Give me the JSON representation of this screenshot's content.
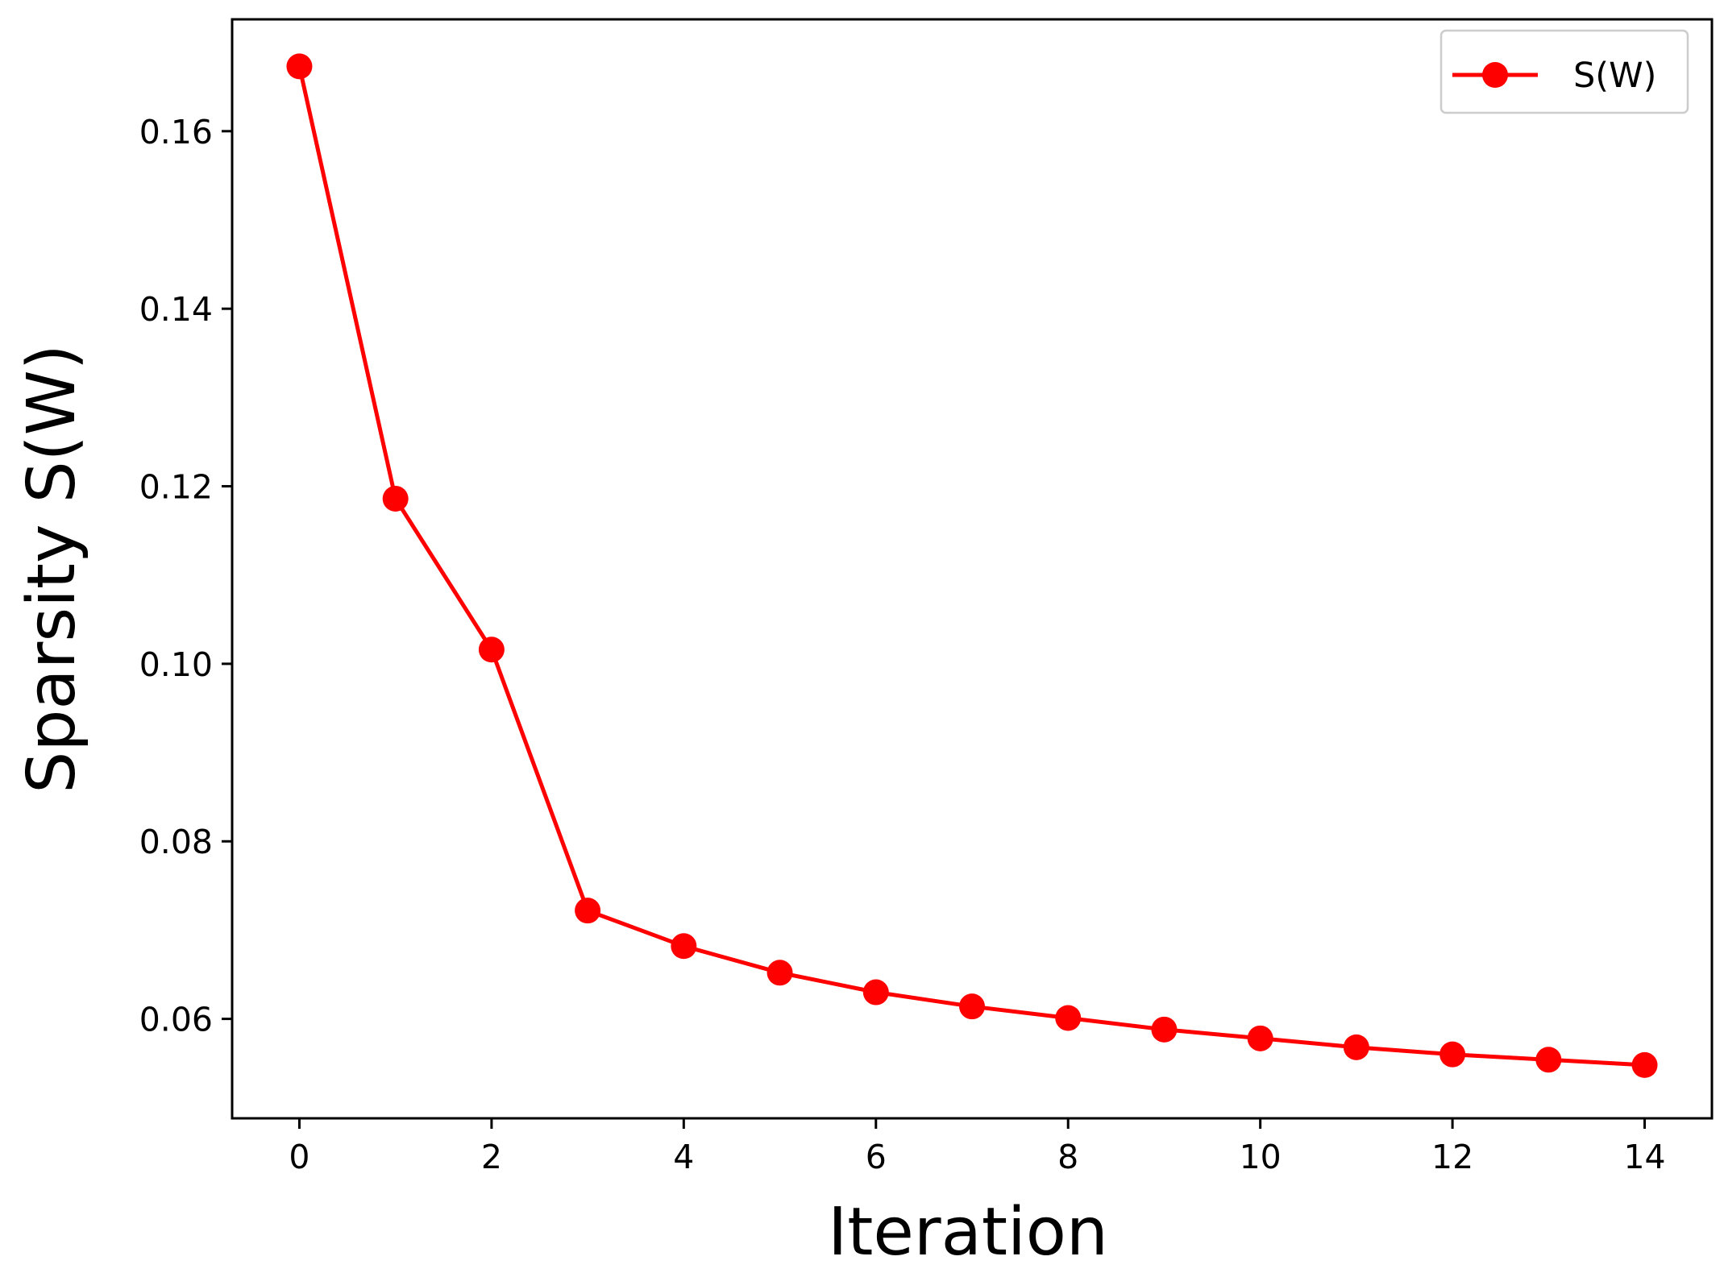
{
  "chart_data": {
    "type": "line",
    "title": "",
    "xlabel": "Iteration",
    "ylabel": "Sparsity S(W)",
    "xlim": [
      -0.7,
      14.7
    ],
    "ylim": [
      0.0488,
      0.1726
    ],
    "xticks": [
      0,
      2,
      4,
      6,
      8,
      10,
      12,
      14
    ],
    "xtick_labels": [
      "0",
      "2",
      "4",
      "6",
      "8",
      "10",
      "12",
      "14"
    ],
    "yticks": [
      0.06,
      0.08,
      0.1,
      0.12,
      0.14,
      0.16
    ],
    "ytick_labels": [
      "0.06",
      "0.08",
      "0.10",
      "0.12",
      "0.14",
      "0.16"
    ],
    "grid": false,
    "legend_position": "top-right",
    "series": [
      {
        "name": "S(W)",
        "color": "#ff0000",
        "marker": "circle",
        "x": [
          0,
          1,
          2,
          3,
          4,
          5,
          6,
          7,
          8,
          9,
          10,
          11,
          12,
          13,
          14
        ],
        "y": [
          0.1673,
          0.1186,
          0.1016,
          0.0722,
          0.0682,
          0.0652,
          0.063,
          0.0614,
          0.0601,
          0.0588,
          0.0578,
          0.0568,
          0.056,
          0.0554,
          0.0548
        ]
      }
    ]
  }
}
